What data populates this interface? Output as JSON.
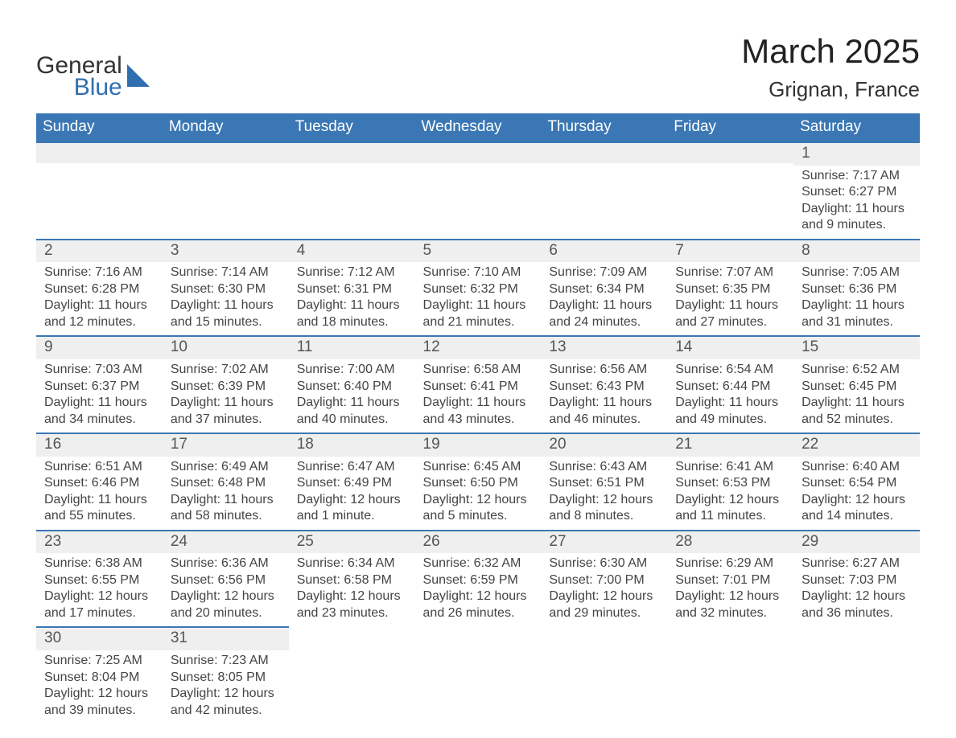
{
  "logo": {
    "general": "General",
    "blue": "Blue"
  },
  "title": "March 2025",
  "location": "Grignan, France",
  "colors": {
    "header_bg": "#3a77b4",
    "header_text": "#ffffff",
    "daynum_bg": "#efefef",
    "border": "#3a77b4",
    "body_text": "#444444"
  },
  "dayHeaders": [
    "Sunday",
    "Monday",
    "Tuesday",
    "Wednesday",
    "Thursday",
    "Friday",
    "Saturday"
  ],
  "weeks": [
    [
      null,
      null,
      null,
      null,
      null,
      null,
      {
        "n": "1",
        "sr": "Sunrise: 7:17 AM",
        "ss": "Sunset: 6:27 PM",
        "dl1": "Daylight: 11 hours",
        "dl2": "and 9 minutes."
      }
    ],
    [
      {
        "n": "2",
        "sr": "Sunrise: 7:16 AM",
        "ss": "Sunset: 6:28 PM",
        "dl1": "Daylight: 11 hours",
        "dl2": "and 12 minutes."
      },
      {
        "n": "3",
        "sr": "Sunrise: 7:14 AM",
        "ss": "Sunset: 6:30 PM",
        "dl1": "Daylight: 11 hours",
        "dl2": "and 15 minutes."
      },
      {
        "n": "4",
        "sr": "Sunrise: 7:12 AM",
        "ss": "Sunset: 6:31 PM",
        "dl1": "Daylight: 11 hours",
        "dl2": "and 18 minutes."
      },
      {
        "n": "5",
        "sr": "Sunrise: 7:10 AM",
        "ss": "Sunset: 6:32 PM",
        "dl1": "Daylight: 11 hours",
        "dl2": "and 21 minutes."
      },
      {
        "n": "6",
        "sr": "Sunrise: 7:09 AM",
        "ss": "Sunset: 6:34 PM",
        "dl1": "Daylight: 11 hours",
        "dl2": "and 24 minutes."
      },
      {
        "n": "7",
        "sr": "Sunrise: 7:07 AM",
        "ss": "Sunset: 6:35 PM",
        "dl1": "Daylight: 11 hours",
        "dl2": "and 27 minutes."
      },
      {
        "n": "8",
        "sr": "Sunrise: 7:05 AM",
        "ss": "Sunset: 6:36 PM",
        "dl1": "Daylight: 11 hours",
        "dl2": "and 31 minutes."
      }
    ],
    [
      {
        "n": "9",
        "sr": "Sunrise: 7:03 AM",
        "ss": "Sunset: 6:37 PM",
        "dl1": "Daylight: 11 hours",
        "dl2": "and 34 minutes."
      },
      {
        "n": "10",
        "sr": "Sunrise: 7:02 AM",
        "ss": "Sunset: 6:39 PM",
        "dl1": "Daylight: 11 hours",
        "dl2": "and 37 minutes."
      },
      {
        "n": "11",
        "sr": "Sunrise: 7:00 AM",
        "ss": "Sunset: 6:40 PM",
        "dl1": "Daylight: 11 hours",
        "dl2": "and 40 minutes."
      },
      {
        "n": "12",
        "sr": "Sunrise: 6:58 AM",
        "ss": "Sunset: 6:41 PM",
        "dl1": "Daylight: 11 hours",
        "dl2": "and 43 minutes."
      },
      {
        "n": "13",
        "sr": "Sunrise: 6:56 AM",
        "ss": "Sunset: 6:43 PM",
        "dl1": "Daylight: 11 hours",
        "dl2": "and 46 minutes."
      },
      {
        "n": "14",
        "sr": "Sunrise: 6:54 AM",
        "ss": "Sunset: 6:44 PM",
        "dl1": "Daylight: 11 hours",
        "dl2": "and 49 minutes."
      },
      {
        "n": "15",
        "sr": "Sunrise: 6:52 AM",
        "ss": "Sunset: 6:45 PM",
        "dl1": "Daylight: 11 hours",
        "dl2": "and 52 minutes."
      }
    ],
    [
      {
        "n": "16",
        "sr": "Sunrise: 6:51 AM",
        "ss": "Sunset: 6:46 PM",
        "dl1": "Daylight: 11 hours",
        "dl2": "and 55 minutes."
      },
      {
        "n": "17",
        "sr": "Sunrise: 6:49 AM",
        "ss": "Sunset: 6:48 PM",
        "dl1": "Daylight: 11 hours",
        "dl2": "and 58 minutes."
      },
      {
        "n": "18",
        "sr": "Sunrise: 6:47 AM",
        "ss": "Sunset: 6:49 PM",
        "dl1": "Daylight: 12 hours",
        "dl2": "and 1 minute."
      },
      {
        "n": "19",
        "sr": "Sunrise: 6:45 AM",
        "ss": "Sunset: 6:50 PM",
        "dl1": "Daylight: 12 hours",
        "dl2": "and 5 minutes."
      },
      {
        "n": "20",
        "sr": "Sunrise: 6:43 AM",
        "ss": "Sunset: 6:51 PM",
        "dl1": "Daylight: 12 hours",
        "dl2": "and 8 minutes."
      },
      {
        "n": "21",
        "sr": "Sunrise: 6:41 AM",
        "ss": "Sunset: 6:53 PM",
        "dl1": "Daylight: 12 hours",
        "dl2": "and 11 minutes."
      },
      {
        "n": "22",
        "sr": "Sunrise: 6:40 AM",
        "ss": "Sunset: 6:54 PM",
        "dl1": "Daylight: 12 hours",
        "dl2": "and 14 minutes."
      }
    ],
    [
      {
        "n": "23",
        "sr": "Sunrise: 6:38 AM",
        "ss": "Sunset: 6:55 PM",
        "dl1": "Daylight: 12 hours",
        "dl2": "and 17 minutes."
      },
      {
        "n": "24",
        "sr": "Sunrise: 6:36 AM",
        "ss": "Sunset: 6:56 PM",
        "dl1": "Daylight: 12 hours",
        "dl2": "and 20 minutes."
      },
      {
        "n": "25",
        "sr": "Sunrise: 6:34 AM",
        "ss": "Sunset: 6:58 PM",
        "dl1": "Daylight: 12 hours",
        "dl2": "and 23 minutes."
      },
      {
        "n": "26",
        "sr": "Sunrise: 6:32 AM",
        "ss": "Sunset: 6:59 PM",
        "dl1": "Daylight: 12 hours",
        "dl2": "and 26 minutes."
      },
      {
        "n": "27",
        "sr": "Sunrise: 6:30 AM",
        "ss": "Sunset: 7:00 PM",
        "dl1": "Daylight: 12 hours",
        "dl2": "and 29 minutes."
      },
      {
        "n": "28",
        "sr": "Sunrise: 6:29 AM",
        "ss": "Sunset: 7:01 PM",
        "dl1": "Daylight: 12 hours",
        "dl2": "and 32 minutes."
      },
      {
        "n": "29",
        "sr": "Sunrise: 6:27 AM",
        "ss": "Sunset: 7:03 PM",
        "dl1": "Daylight: 12 hours",
        "dl2": "and 36 minutes."
      }
    ],
    [
      {
        "n": "30",
        "sr": "Sunrise: 7:25 AM",
        "ss": "Sunset: 8:04 PM",
        "dl1": "Daylight: 12 hours",
        "dl2": "and 39 minutes."
      },
      {
        "n": "31",
        "sr": "Sunrise: 7:23 AM",
        "ss": "Sunset: 8:05 PM",
        "dl1": "Daylight: 12 hours",
        "dl2": "and 42 minutes."
      },
      null,
      null,
      null,
      null,
      null
    ]
  ]
}
